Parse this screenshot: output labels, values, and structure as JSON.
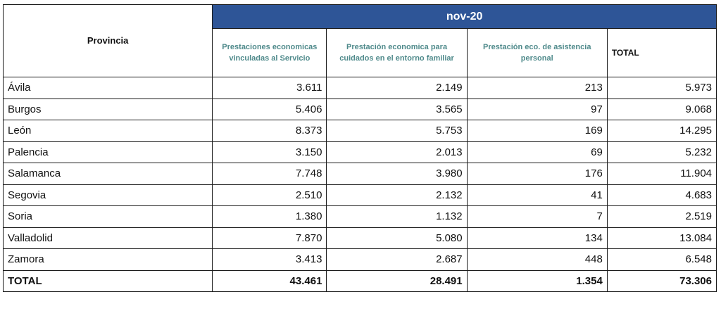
{
  "header": {
    "provincia_label": "Provincia",
    "period_label": "nov-20",
    "columns": [
      "Prestaciones economicas vinculadas al Servicio",
      "Prestación economica para cuidados en el entorno familiar",
      "Prestación eco. de asistencia personal",
      "TOTAL"
    ]
  },
  "rows": [
    {
      "provincia": "Ávila",
      "servicio": "3.611",
      "entorno": "2.149",
      "asistencia": "213",
      "total": "5.973"
    },
    {
      "provincia": "Burgos",
      "servicio": "5.406",
      "entorno": "3.565",
      "asistencia": "97",
      "total": "9.068"
    },
    {
      "provincia": "León",
      "servicio": "8.373",
      "entorno": "5.753",
      "asistencia": "169",
      "total": "14.295"
    },
    {
      "provincia": "Palencia",
      "servicio": "3.150",
      "entorno": "2.013",
      "asistencia": "69",
      "total": "5.232"
    },
    {
      "provincia": "Salamanca",
      "servicio": "7.748",
      "entorno": "3.980",
      "asistencia": "176",
      "total": "11.904"
    },
    {
      "provincia": "Segovia",
      "servicio": "2.510",
      "entorno": "2.132",
      "asistencia": "41",
      "total": "4.683"
    },
    {
      "provincia": "Soria",
      "servicio": "1.380",
      "entorno": "1.132",
      "asistencia": "7",
      "total": "2.519"
    },
    {
      "provincia": "Valladolid",
      "servicio": "7.870",
      "entorno": "5.080",
      "asistencia": "134",
      "total": "13.084"
    },
    {
      "provincia": "Zamora",
      "servicio": "3.413",
      "entorno": "2.687",
      "asistencia": "448",
      "total": "6.548"
    }
  ],
  "totals": {
    "provincia": "TOTAL",
    "servicio": "43.461",
    "entorno": "28.491",
    "asistencia": "1.354",
    "total": "73.306"
  },
  "colors": {
    "header_band": "#2e5597",
    "subheader_text": "#4f8a8b"
  }
}
